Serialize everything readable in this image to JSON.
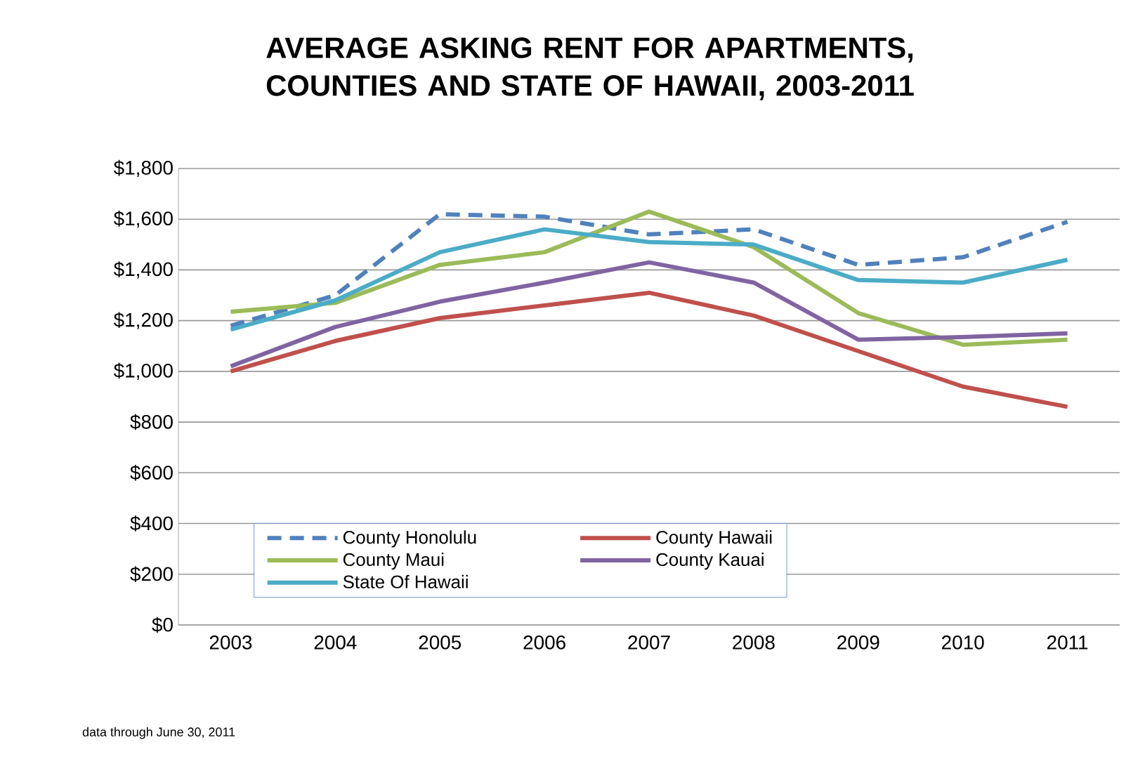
{
  "chart_data": {
    "type": "line",
    "title": "AVERAGE ASKING RENT FOR APARTMENTS, COUNTIES AND STATE OF HAWAII, 2003-2011",
    "categories": [
      "2003",
      "2004",
      "2005",
      "2006",
      "2007",
      "2008",
      "2009",
      "2010",
      "2011"
    ],
    "series": [
      {
        "name": "County Honolulu",
        "color": "#4f81bd",
        "line_style": "dashed",
        "values": [
          1180,
          1300,
          1620,
          1610,
          1540,
          1560,
          1420,
          1450,
          1590
        ]
      },
      {
        "name": "County Hawaii",
        "color": "#c0504d",
        "values": [
          1000,
          1120,
          1210,
          1260,
          1310,
          1220,
          1080,
          940,
          860
        ]
      },
      {
        "name": "County Maui",
        "color": "#9bbb59",
        "values": [
          1235,
          1270,
          1420,
          1470,
          1630,
          1490,
          1230,
          1105,
          1125
        ]
      },
      {
        "name": "County Kauai",
        "color": "#8064a2",
        "values": [
          1020,
          1175,
          1275,
          1350,
          1430,
          1350,
          1125,
          1135,
          1150
        ]
      },
      {
        "name": "State Of Hawaii",
        "color": "#4bacc6",
        "values": [
          1165,
          1280,
          1470,
          1560,
          1510,
          1500,
          1360,
          1350,
          1440
        ]
      }
    ],
    "ylim": [
      0,
      1800
    ],
    "yticks": [
      {
        "value": 0,
        "label": "$0"
      },
      {
        "value": 200,
        "label": "$200"
      },
      {
        "value": 400,
        "label": "$400"
      },
      {
        "value": 600,
        "label": "$600"
      },
      {
        "value": 800,
        "label": "$800"
      },
      {
        "value": 1000,
        "label": "$1,000"
      },
      {
        "value": 1200,
        "label": "$1,200"
      },
      {
        "value": 1400,
        "label": "$1,400"
      },
      {
        "value": 1600,
        "label": "$1,600"
      },
      {
        "value": 1800,
        "label": "$1,800"
      }
    ],
    "grid": "y",
    "legend": "bottom",
    "line_style": "solid",
    "marker": "none",
    "annotations": [
      "data through June 30, 2011"
    ]
  }
}
